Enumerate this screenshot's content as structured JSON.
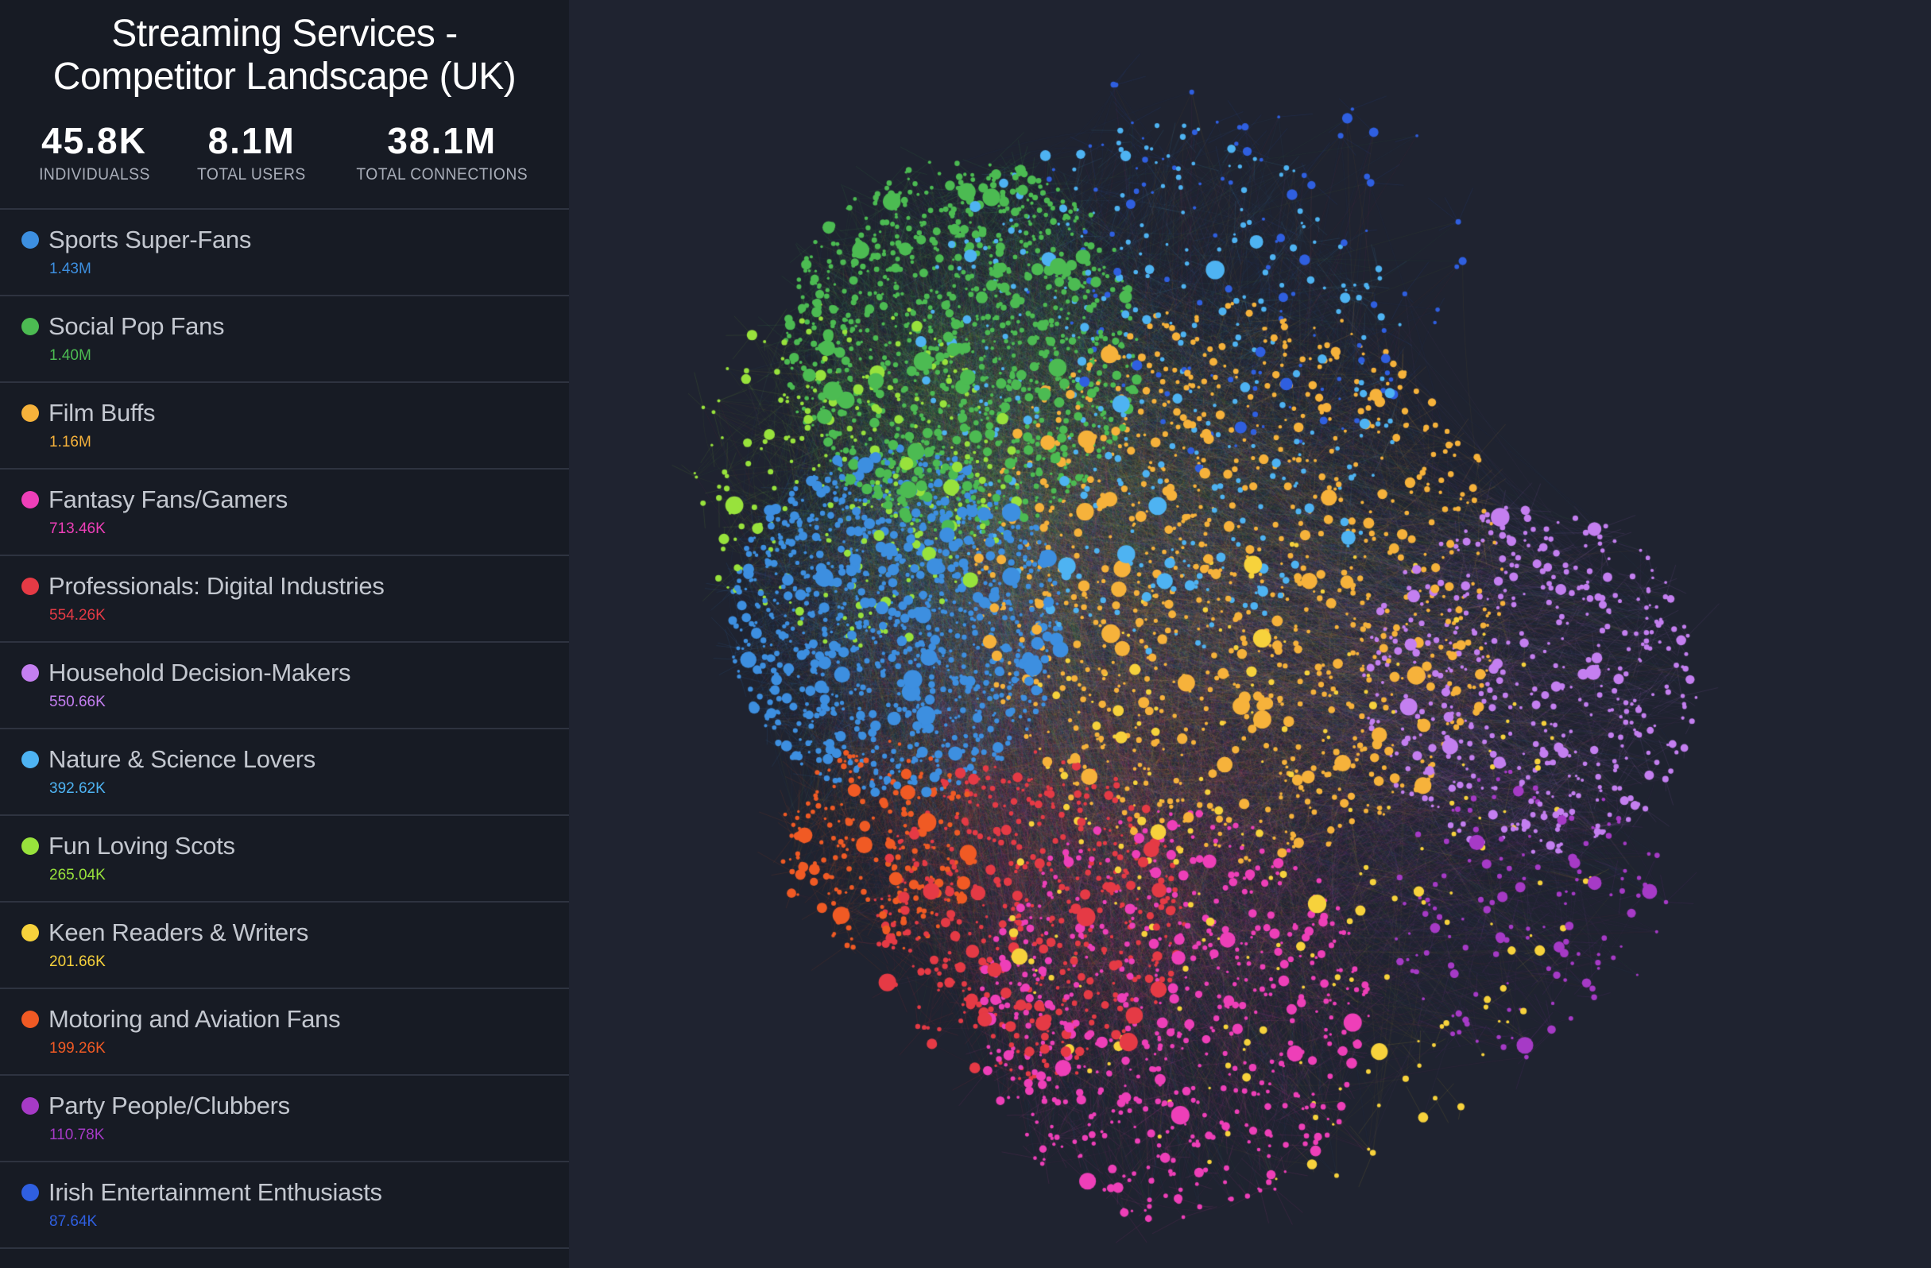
{
  "header": {
    "title": "Streaming Services - Competitor Landscape (UK)"
  },
  "stats": [
    {
      "value": "45.8K",
      "label": "INDIVIDUALSS"
    },
    {
      "value": "8.1M",
      "label": "TOTAL USERS"
    },
    {
      "value": "38.1M",
      "label": "TOTAL CONNECTIONS"
    }
  ],
  "segments": [
    {
      "name": "Sports Super-Fans",
      "count": "1.43M",
      "color": "#3d8fe0",
      "share": 0.2
    },
    {
      "name": "Social Pop Fans",
      "count": "1.40M",
      "color": "#4cbb52",
      "share": 0.2
    },
    {
      "name": "Film Buffs",
      "count": "1.16M",
      "color": "#f6b23b",
      "share": 0.17
    },
    {
      "name": "Fantasy Fans/Gamers",
      "count": "713.46K",
      "color": "#ee3fb8",
      "share": 0.1
    },
    {
      "name": "Professionals: Digital Industries",
      "count": "554.26K",
      "color": "#e53a45",
      "share": 0.08
    },
    {
      "name": "Household Decision-Makers",
      "count": "550.66K",
      "color": "#c47ff0",
      "share": 0.08
    },
    {
      "name": "Nature & Science Lovers",
      "count": "392.62K",
      "color": "#4eb3f2",
      "share": 0.055
    },
    {
      "name": "Fun Loving Scots",
      "count": "265.04K",
      "color": "#98e23c",
      "share": 0.04
    },
    {
      "name": "Keen Readers & Writers",
      "count": "201.66K",
      "color": "#f7d23c",
      "share": 0.03
    },
    {
      "name": "Motoring and Aviation Fans",
      "count": "199.26K",
      "color": "#f05a24",
      "share": 0.03
    },
    {
      "name": "Party People/Clubbers",
      "count": "110.78K",
      "color": "#a63ac6",
      "share": 0.015
    },
    {
      "name": "Irish Entertainment Enthusiasts",
      "count": "87.64K",
      "color": "#2f5fe0",
      "share": 0.012
    }
  ]
}
